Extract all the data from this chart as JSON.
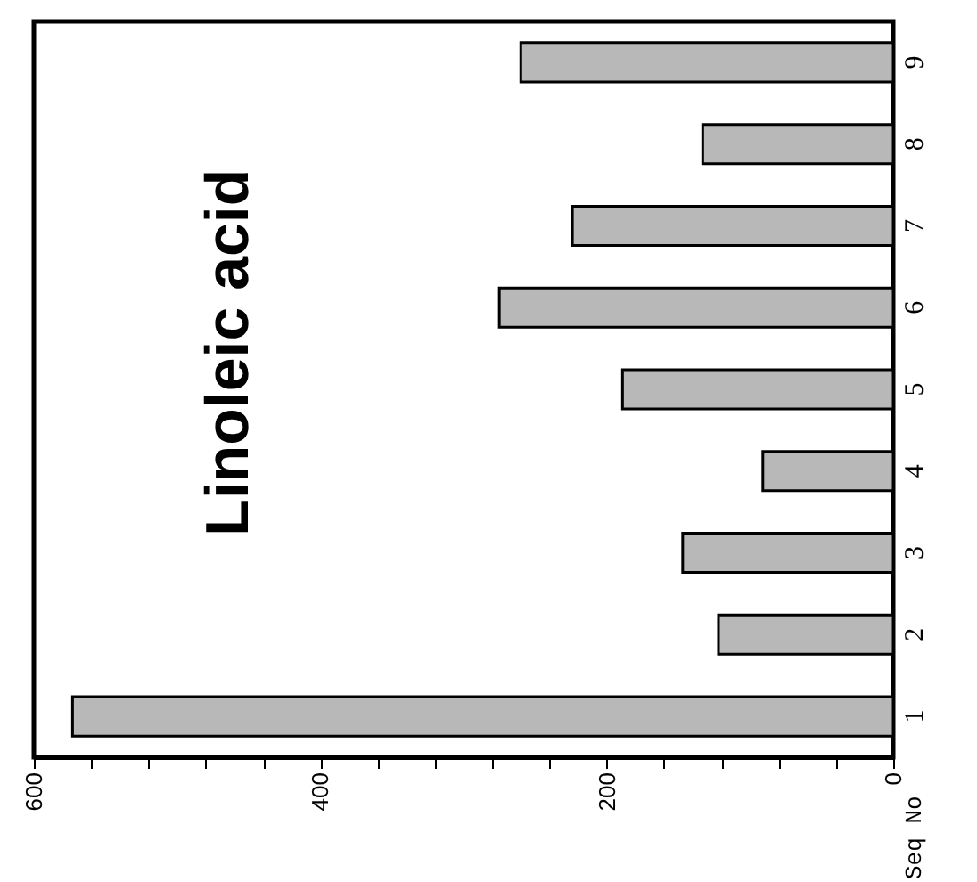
{
  "chart_data": {
    "type": "bar",
    "orientation": "horizontal",
    "title": "Linoleic acid",
    "ylabel": "Seq No",
    "categories": [
      "9",
      "8",
      "7",
      "6",
      "5",
      "4",
      "3",
      "2",
      "1"
    ],
    "values": [
      260,
      133,
      224,
      275,
      189,
      91,
      147,
      122,
      573
    ],
    "color": "#b8b8b8",
    "xlim": [
      600,
      0
    ],
    "xticks": [
      600,
      {
        "value": 560,
        "label": null
      },
      {
        "value": 520,
        "label": null
      },
      {
        "value": 480,
        "label": null
      },
      {
        "value": 440,
        "label": null
      },
      400,
      {
        "value": 360,
        "label": null
      },
      {
        "value": 320,
        "label": null
      },
      {
        "value": 280,
        "label": null
      },
      {
        "value": 240,
        "label": null
      },
      200,
      {
        "value": 160,
        "label": null
      },
      {
        "value": 120,
        "label": null
      },
      {
        "value": 80,
        "label": null
      },
      {
        "value": 40,
        "label": null
      },
      0
    ],
    "grid": false
  }
}
